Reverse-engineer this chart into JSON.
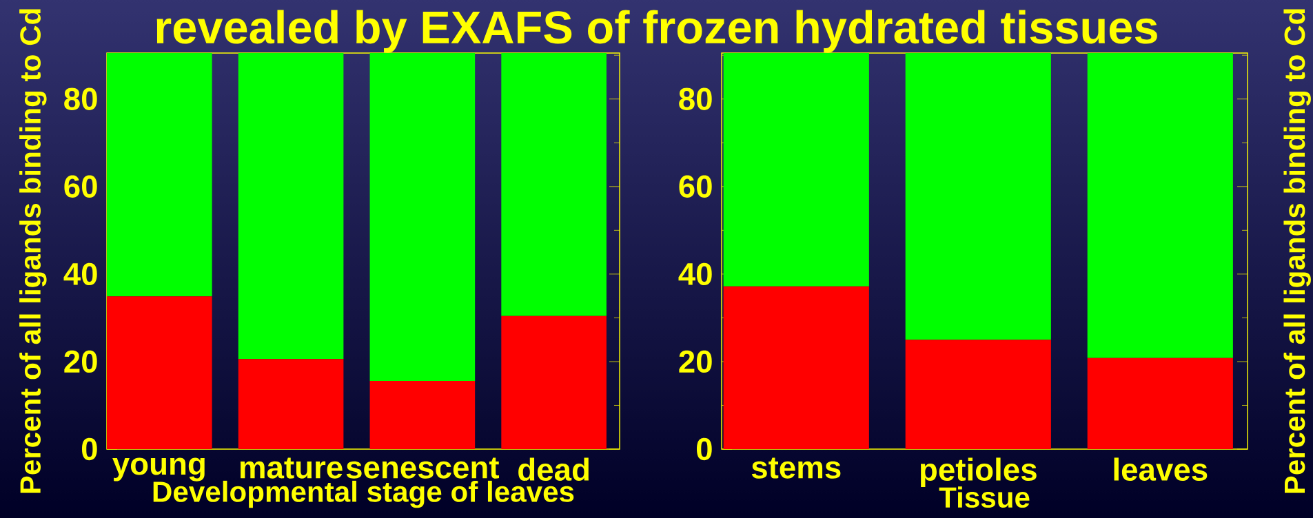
{
  "chart_data": [
    {
      "type": "bar",
      "title": "revealed by EXAFS of frozen hydrated tissues",
      "stacked": true,
      "categories": [
        "young",
        "mature",
        "senescent",
        "dead"
      ],
      "xlabel": "Developmental stage of leaves",
      "ylabel": "Percent of all ligands binding to Cd",
      "ylim": [
        0,
        90.5
      ],
      "yticks": [
        0,
        {
          "value": 10,
          "label": null
        },
        20,
        {
          "value": 30,
          "label": null
        },
        40,
        {
          "value": 50,
          "label": null
        },
        60,
        {
          "value": 70,
          "label": null
        },
        80,
        {
          "value": 90,
          "label": null
        }
      ],
      "series": [
        {
          "color": "#ff0000",
          "values": [
            34.9,
            20.6,
            15.6,
            30.4
          ]
        },
        {
          "color": "#00ff00",
          "values": [
            55.6,
            69.9,
            74.9,
            60.1
          ]
        }
      ],
      "grid": false
    },
    {
      "type": "bar",
      "stacked": true,
      "categories": [
        "stems",
        "petioles",
        "leaves"
      ],
      "xlabel": "Tissue",
      "y2label": "Percent of all ligands binding to Cd",
      "ylim": [
        0,
        90.5
      ],
      "yticks": [
        0,
        {
          "value": 10,
          "label": null
        },
        20,
        {
          "value": 30,
          "label": null
        },
        40,
        {
          "value": 50,
          "label": null
        },
        60,
        {
          "value": 70,
          "label": null
        },
        80,
        {
          "value": 90,
          "label": null
        }
      ],
      "series": [
        {
          "color": "#ff0000",
          "values": [
            37.2,
            25.0,
            20.8
          ]
        },
        {
          "color": "#00ff00",
          "values": [
            53.3,
            65.5,
            69.7
          ]
        }
      ],
      "grid": false
    }
  ]
}
